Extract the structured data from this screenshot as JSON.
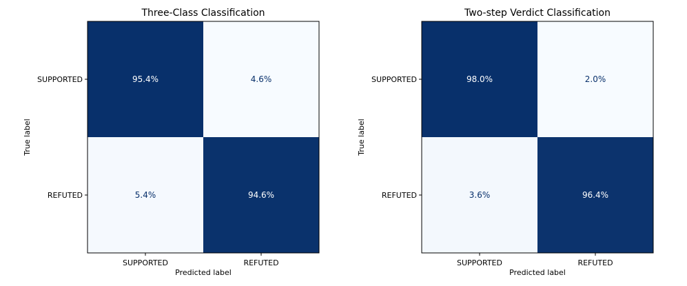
{
  "chart_data": [
    {
      "type": "heatmap",
      "title": "Three-Class Classification",
      "xlabel": "Predicted label",
      "ylabel": "True label",
      "x_categories": [
        "SUPPORTED",
        "REFUTED"
      ],
      "y_categories": [
        "SUPPORTED",
        "REFUTED"
      ],
      "values": [
        [
          95.4,
          4.6
        ],
        [
          5.4,
          94.6
        ]
      ],
      "value_labels": [
        [
          "95.4%",
          "4.6%"
        ],
        [
          "5.4%",
          "94.6%"
        ]
      ],
      "colormap": "Blues",
      "color_low": "#f7fbff",
      "color_high": "#08306b",
      "grid": false
    },
    {
      "type": "heatmap",
      "title": "Two-step Verdict Classification",
      "xlabel": "Predicted label",
      "ylabel": "True label",
      "x_categories": [
        "SUPPORTED",
        "REFUTED"
      ],
      "y_categories": [
        "SUPPORTED",
        "REFUTED"
      ],
      "values": [
        [
          98.0,
          2.0
        ],
        [
          3.6,
          96.4
        ]
      ],
      "value_labels": [
        [
          "98.0%",
          "2.0%"
        ],
        [
          "3.6%",
          "96.4%"
        ]
      ],
      "colormap": "Blues",
      "color_low": "#f7fbff",
      "color_high": "#08306b",
      "grid": false
    }
  ]
}
